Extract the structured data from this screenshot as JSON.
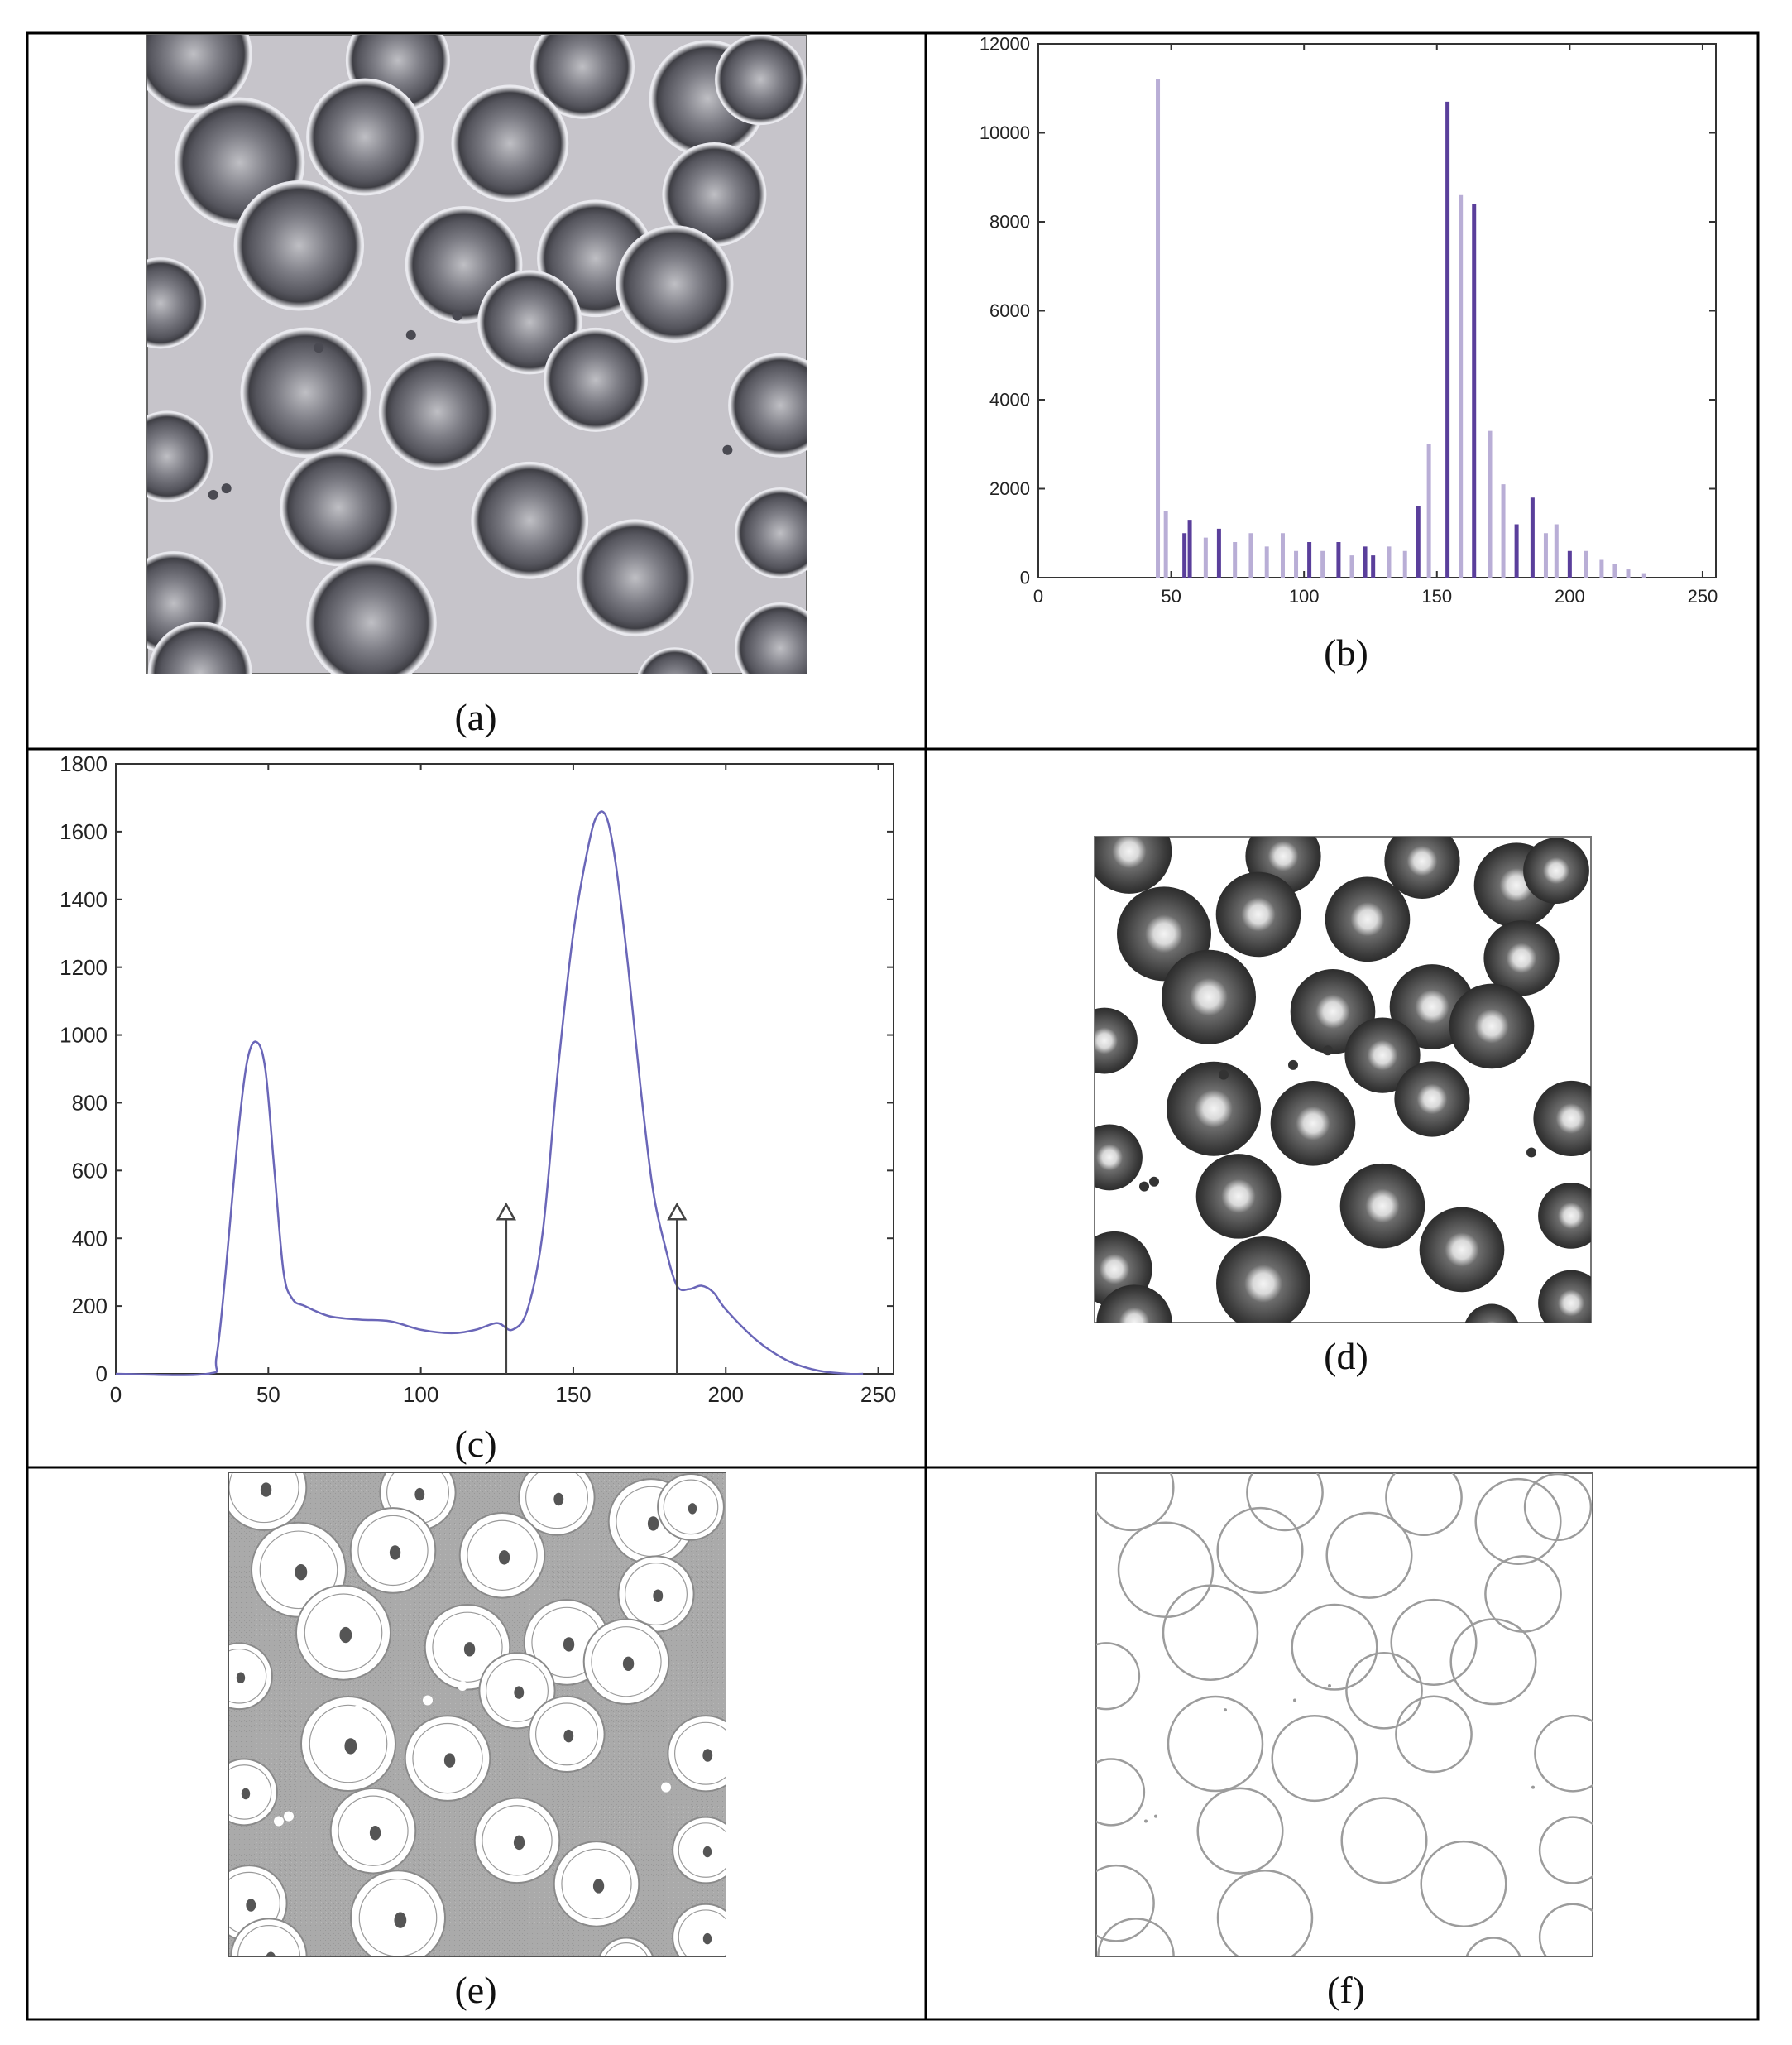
{
  "figure": {
    "panels": [
      {
        "id": "a",
        "caption": "(a)",
        "content": "blood-smear-micrograph"
      },
      {
        "id": "b",
        "caption": "(b)",
        "content": "histogram"
      },
      {
        "id": "c",
        "caption": "(c)",
        "content": "smoothed-histogram"
      },
      {
        "id": "d",
        "caption": "(d)",
        "content": "thresholded-image"
      },
      {
        "id": "e",
        "caption": "(e)",
        "content": "segmented-image"
      },
      {
        "id": "f",
        "caption": "(f)",
        "content": "edge-image"
      }
    ],
    "colors": {
      "bar_light": "#b9aed6",
      "bar_dark": "#5a3f9b",
      "curve": "#6a66b8",
      "gray_bg": "#c9c7cc"
    }
  },
  "chart_data": [
    {
      "panel": "b",
      "type": "bar",
      "xlim": [
        0,
        255
      ],
      "ylim": [
        0,
        12000
      ],
      "xticks": [
        "0",
        "50",
        "100",
        "150",
        "200",
        "250"
      ],
      "yticks": [
        "0",
        "2000",
        "4000",
        "6000",
        "8000",
        "10000",
        "12000"
      ],
      "bars": [
        {
          "x": 45,
          "y": 11200,
          "tone": "light"
        },
        {
          "x": 48,
          "y": 1500,
          "tone": "light"
        },
        {
          "x": 55,
          "y": 1000,
          "tone": "dark"
        },
        {
          "x": 57,
          "y": 1300,
          "tone": "dark"
        },
        {
          "x": 63,
          "y": 900,
          "tone": "light"
        },
        {
          "x": 68,
          "y": 1100,
          "tone": "dark"
        },
        {
          "x": 74,
          "y": 800,
          "tone": "light"
        },
        {
          "x": 80,
          "y": 1000,
          "tone": "light"
        },
        {
          "x": 86,
          "y": 700,
          "tone": "light"
        },
        {
          "x": 92,
          "y": 1000,
          "tone": "light"
        },
        {
          "x": 97,
          "y": 600,
          "tone": "light"
        },
        {
          "x": 102,
          "y": 800,
          "tone": "dark"
        },
        {
          "x": 107,
          "y": 600,
          "tone": "light"
        },
        {
          "x": 113,
          "y": 800,
          "tone": "dark"
        },
        {
          "x": 118,
          "y": 500,
          "tone": "light"
        },
        {
          "x": 123,
          "y": 700,
          "tone": "dark"
        },
        {
          "x": 126,
          "y": 500,
          "tone": "dark"
        },
        {
          "x": 132,
          "y": 700,
          "tone": "light"
        },
        {
          "x": 138,
          "y": 600,
          "tone": "light"
        },
        {
          "x": 143,
          "y": 1600,
          "tone": "dark"
        },
        {
          "x": 147,
          "y": 3000,
          "tone": "light"
        },
        {
          "x": 154,
          "y": 10700,
          "tone": "dark"
        },
        {
          "x": 159,
          "y": 8600,
          "tone": "light"
        },
        {
          "x": 164,
          "y": 8400,
          "tone": "dark"
        },
        {
          "x": 170,
          "y": 3300,
          "tone": "light"
        },
        {
          "x": 175,
          "y": 2100,
          "tone": "light"
        },
        {
          "x": 180,
          "y": 1200,
          "tone": "dark"
        },
        {
          "x": 186,
          "y": 1800,
          "tone": "dark"
        },
        {
          "x": 191,
          "y": 1000,
          "tone": "light"
        },
        {
          "x": 195,
          "y": 1200,
          "tone": "light"
        },
        {
          "x": 200,
          "y": 600,
          "tone": "dark"
        },
        {
          "x": 206,
          "y": 600,
          "tone": "light"
        },
        {
          "x": 212,
          "y": 400,
          "tone": "light"
        },
        {
          "x": 217,
          "y": 300,
          "tone": "light"
        },
        {
          "x": 222,
          "y": 200,
          "tone": "light"
        },
        {
          "x": 228,
          "y": 100,
          "tone": "light"
        }
      ]
    },
    {
      "panel": "c",
      "type": "line",
      "xlim": [
        0,
        255
      ],
      "ylim": [
        0,
        1800
      ],
      "xticks": [
        "0",
        "50",
        "100",
        "150",
        "200",
        "250"
      ],
      "yticks": [
        "0",
        "200",
        "400",
        "600",
        "800",
        "1000",
        "1200",
        "1400",
        "1600",
        "1800"
      ],
      "x": [
        0,
        30,
        33,
        36,
        40,
        43,
        46,
        49,
        52,
        55,
        58,
        62,
        70,
        80,
        90,
        100,
        110,
        118,
        125,
        130,
        135,
        140,
        145,
        150,
        155,
        158,
        161,
        164,
        168,
        172,
        176,
        180,
        184,
        188,
        192,
        196,
        200,
        210,
        220,
        230,
        240,
        245
      ],
      "y": [
        0,
        0,
        50,
        300,
        700,
        920,
        980,
        900,
        600,
        300,
        220,
        200,
        170,
        160,
        155,
        130,
        120,
        130,
        150,
        130,
        190,
        420,
        900,
        1300,
        1560,
        1650,
        1640,
        1500,
        1200,
        850,
        550,
        380,
        260,
        250,
        260,
        240,
        190,
        100,
        40,
        10,
        0,
        0
      ],
      "markers": [
        {
          "x": 128,
          "top": 500
        },
        {
          "x": 184,
          "top": 500
        }
      ]
    }
  ]
}
